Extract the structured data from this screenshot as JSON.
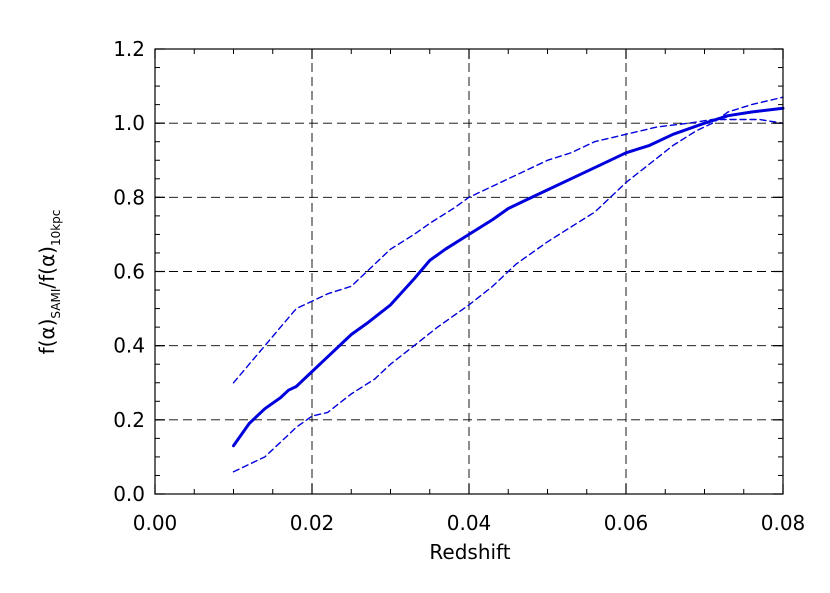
{
  "chart_data": {
    "type": "line",
    "xlabel": "Redshift",
    "ylabel": {
      "prefix": "f(α)",
      "sub1": "SAMI",
      "slash": "/f(α)",
      "sub2": "10kpc"
    },
    "xlim": [
      0.0,
      0.08
    ],
    "ylim": [
      0.0,
      1.2
    ],
    "xticks": [
      "0.00",
      "0.02",
      "0.04",
      "0.06",
      "0.08"
    ],
    "yticks": [
      "0.0",
      "0.2",
      "0.4",
      "0.6",
      "0.8",
      "1.0",
      "1.2"
    ],
    "grid": true,
    "colors": {
      "series": "#0000dd",
      "grid": "#000000",
      "axis": "#000000"
    },
    "series": [
      {
        "style": "solid",
        "x": [
          0.01,
          0.012,
          0.014,
          0.016,
          0.017,
          0.018,
          0.02,
          0.022,
          0.025,
          0.027,
          0.03,
          0.033,
          0.035,
          0.037,
          0.04,
          0.043,
          0.045,
          0.047,
          0.05,
          0.053,
          0.056,
          0.06,
          0.063,
          0.066,
          0.07,
          0.073,
          0.076,
          0.08
        ],
        "y": [
          0.13,
          0.19,
          0.23,
          0.26,
          0.28,
          0.29,
          0.33,
          0.37,
          0.43,
          0.46,
          0.51,
          0.58,
          0.63,
          0.66,
          0.7,
          0.74,
          0.77,
          0.79,
          0.82,
          0.85,
          0.88,
          0.92,
          0.94,
          0.97,
          1.0,
          1.02,
          1.03,
          1.04
        ]
      },
      {
        "style": "dashed",
        "x": [
          0.01,
          0.012,
          0.014,
          0.016,
          0.018,
          0.02,
          0.022,
          0.025,
          0.028,
          0.03,
          0.033,
          0.035,
          0.038,
          0.04,
          0.043,
          0.046,
          0.05,
          0.053,
          0.056,
          0.06,
          0.064,
          0.068,
          0.071,
          0.074,
          0.077,
          0.08
        ],
        "y": [
          0.3,
          0.35,
          0.4,
          0.45,
          0.5,
          0.52,
          0.54,
          0.56,
          0.62,
          0.66,
          0.7,
          0.73,
          0.77,
          0.8,
          0.83,
          0.86,
          0.9,
          0.92,
          0.95,
          0.97,
          0.99,
          1.0,
          1.01,
          1.01,
          1.01,
          1.0
        ]
      },
      {
        "style": "dashed",
        "x": [
          0.01,
          0.012,
          0.014,
          0.016,
          0.018,
          0.02,
          0.022,
          0.025,
          0.028,
          0.03,
          0.033,
          0.036,
          0.04,
          0.043,
          0.046,
          0.05,
          0.053,
          0.056,
          0.06,
          0.063,
          0.066,
          0.069,
          0.071,
          0.073,
          0.076,
          0.08
        ],
        "y": [
          0.06,
          0.08,
          0.1,
          0.14,
          0.18,
          0.21,
          0.22,
          0.27,
          0.31,
          0.35,
          0.4,
          0.45,
          0.51,
          0.56,
          0.62,
          0.68,
          0.72,
          0.76,
          0.84,
          0.89,
          0.94,
          0.98,
          1.0,
          1.03,
          1.05,
          1.07
        ]
      }
    ]
  }
}
